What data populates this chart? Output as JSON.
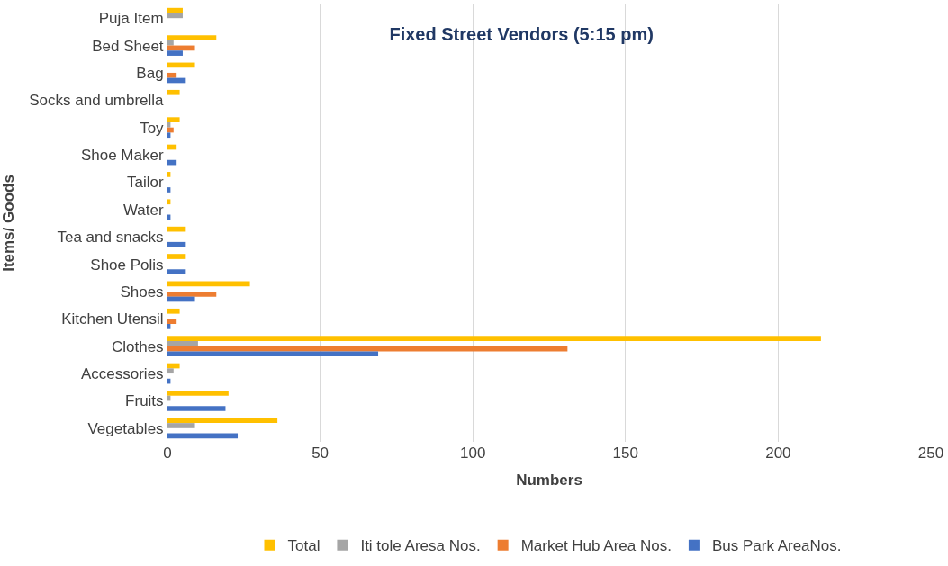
{
  "chart_data": {
    "type": "bar",
    "orientation": "horizontal",
    "title": "Fixed Street Vendors (5:15 pm)",
    "xlabel": "Numbers",
    "ylabel": "Items/ Goods",
    "categories": [
      "Puja Item",
      "Bed Sheet",
      "Bag",
      "Socks and umbrella",
      "Toy",
      "Shoe Maker",
      "Tailor",
      "Water",
      "Tea and snacks",
      "Shoe Polis",
      "Shoes",
      "Kitchen Utensil",
      "Clothes",
      "Accessories",
      "Fruits",
      "Vegetables"
    ],
    "series": [
      {
        "name": "Total",
        "color": "#ffc000",
        "values": [
          5,
          16,
          9,
          4,
          4,
          3,
          1,
          1,
          6,
          6,
          27,
          4,
          214,
          4,
          20,
          36
        ]
      },
      {
        "name": "Iti tole Aresa Nos.",
        "color": "#a5a5a5",
        "values": [
          5,
          2,
          null,
          null,
          1,
          null,
          null,
          null,
          null,
          null,
          null,
          null,
          10,
          2,
          1,
          9
        ]
      },
      {
        "name": "Market Hub Area Nos.",
        "color": "#ed7d31",
        "values": [
          null,
          9,
          3,
          null,
          2,
          null,
          null,
          null,
          null,
          null,
          16,
          3,
          131,
          null,
          null,
          null
        ]
      },
      {
        "name": "Bus Park AreaNos.",
        "color": "#4472c4",
        "values": [
          null,
          5,
          6,
          null,
          1,
          3,
          1,
          1,
          6,
          6,
          9,
          1,
          69,
          1,
          19,
          23
        ]
      }
    ],
    "xlim": [
      0,
      250
    ],
    "xticks": [
      0,
      50,
      100,
      150,
      200,
      250
    ],
    "grid": "x",
    "legend": "bottom"
  }
}
